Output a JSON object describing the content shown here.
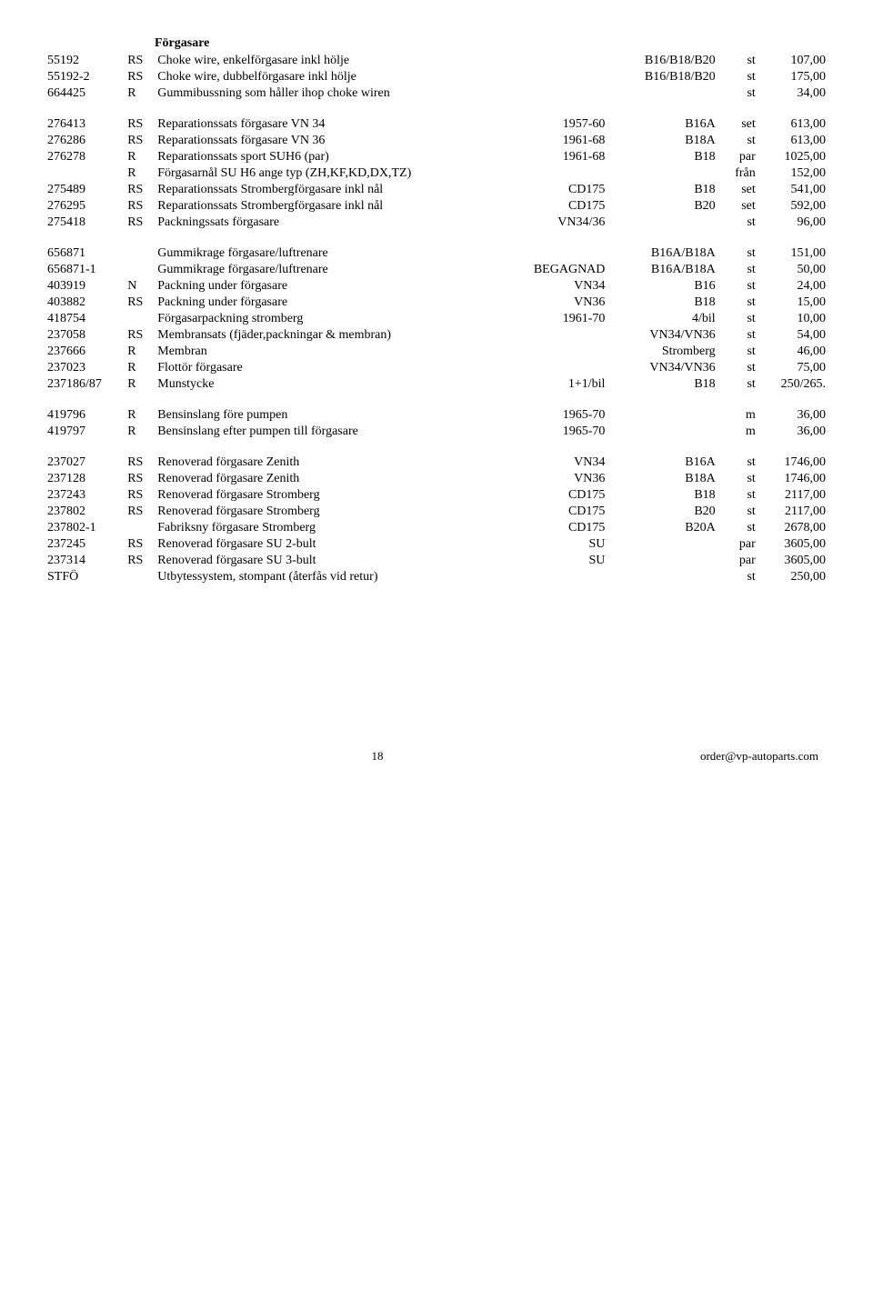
{
  "title": "Förgasare",
  "rows": [
    {
      "part": "55192",
      "code": "RS",
      "desc": "Choke wire, enkelförgasare   inkl hölje",
      "spec": "",
      "fit": "B16/B18/B20",
      "unit": "st",
      "price": "107,00"
    },
    {
      "part": "55192-2",
      "code": "RS",
      "desc": "Choke wire, dubbelförgasare   inkl hölje",
      "spec": "",
      "fit": "B16/B18/B20",
      "unit": "st",
      "price": "175,00"
    },
    {
      "part": "664425",
      "code": "R",
      "desc": "Gummibussning som håller ihop choke wiren",
      "spec": "",
      "fit": "",
      "unit": "st",
      "price": "34,00"
    },
    {
      "spacer": true
    },
    {
      "part": "276413",
      "code": "RS",
      "desc": "Reparationssats förgasare  VN 34",
      "spec": "1957-60",
      "fit": "B16A",
      "unit": "set",
      "price": "613,00"
    },
    {
      "part": "276286",
      "code": "RS",
      "desc": "Reparationssats förgasare  VN 36",
      "spec": "1961-68",
      "fit": "B18A",
      "unit": "st",
      "price": "613,00"
    },
    {
      "part": "276278",
      "code": "R",
      "desc": "Reparationssats sport SUH6 (par)",
      "spec": "1961-68",
      "fit": "B18",
      "unit": "par",
      "price": "1025,00"
    },
    {
      "part": "",
      "code": "R",
      "desc": "Förgasarnål SU H6   ange typ (ZH,KF,KD,DX,TZ)",
      "spec": "",
      "fit": "",
      "unit": "från",
      "price": "152,00"
    },
    {
      "part": "275489",
      "code": "RS",
      "desc": "Reparationssats Strombergförgasare inkl nål",
      "spec": "CD175",
      "fit": "B18",
      "unit": "set",
      "price": "541,00"
    },
    {
      "part": "276295",
      "code": "RS",
      "desc": "Reparationssats Strombergförgasare inkl nål",
      "spec": "CD175",
      "fit": "B20",
      "unit": "set",
      "price": "592,00"
    },
    {
      "part": "275418",
      "code": "RS",
      "desc": "Packningssats förgasare",
      "spec": "VN34/36",
      "fit": "",
      "unit": "st",
      "price": "96,00"
    },
    {
      "spacer": true
    },
    {
      "part": "656871",
      "code": "",
      "desc": "Gummikrage förgasare/luftrenare",
      "spec": "",
      "fit": "B16A/B18A",
      "unit": "st",
      "price": "151,00"
    },
    {
      "part": "656871-1",
      "code": "",
      "desc": "Gummikrage förgasare/luftrenare",
      "spec": "BEGAGNAD",
      "fit": "B16A/B18A",
      "unit": "st",
      "price": "50,00"
    },
    {
      "part": "403919",
      "code": "N",
      "desc": "Packning under förgasare",
      "spec": "VN34",
      "fit": "B16",
      "unit": "st",
      "price": "24,00"
    },
    {
      "part": "403882",
      "code": "RS",
      "desc": "Packning under förgasare",
      "spec": "VN36",
      "fit": "B18",
      "unit": "st",
      "price": "15,00"
    },
    {
      "part": "418754",
      "code": "",
      "desc": "Förgasarpackning stromberg",
      "spec": "1961-70",
      "fit": "4/bil",
      "unit": "st",
      "price": "10,00"
    },
    {
      "part": "237058",
      "code": "RS",
      "desc": "Membransats (fjäder,packningar & membran)",
      "spec": "",
      "fit": "VN34/VN36",
      "unit": "st",
      "price": "54,00"
    },
    {
      "part": "237666",
      "code": "R",
      "desc": "Membran",
      "spec": "",
      "fit": "Stromberg",
      "unit": "st",
      "price": "46,00"
    },
    {
      "part": "237023",
      "code": "R",
      "desc": "Flottör förgasare",
      "spec": "",
      "fit": "VN34/VN36",
      "unit": "st",
      "price": "75,00"
    },
    {
      "part": "237186/87",
      "code": "R",
      "desc": "Munstycke",
      "spec": "1+1/bil",
      "fit": "B18",
      "unit": "st",
      "price": "250/265."
    },
    {
      "spacer": true
    },
    {
      "part": "419796",
      "code": "R",
      "desc": "Bensinslang före pumpen",
      "spec": "1965-70",
      "fit": "",
      "unit": "m",
      "price": "36,00"
    },
    {
      "part": "419797",
      "code": "R",
      "desc": "Bensinslang efter pumpen till förgasare",
      "spec": "1965-70",
      "fit": "",
      "unit": "m",
      "price": "36,00"
    },
    {
      "spacer": true
    },
    {
      "part": "237027",
      "code": "RS",
      "desc": "Renoverad förgasare Zenith",
      "spec": "VN34",
      "fit": "B16A",
      "unit": "st",
      "price": "1746,00"
    },
    {
      "part": "237128",
      "code": "RS",
      "desc": "Renoverad förgasare Zenith",
      "spec": "VN36",
      "fit": "B18A",
      "unit": "st",
      "price": "1746,00"
    },
    {
      "part": "237243",
      "code": "RS",
      "desc": "Renoverad förgasare Stromberg",
      "spec": "CD175",
      "fit": "B18",
      "unit": "st",
      "price": "2117,00"
    },
    {
      "part": "237802",
      "code": "RS",
      "desc": "Renoverad förgasare Stromberg",
      "spec": "CD175",
      "fit": "B20",
      "unit": "st",
      "price": "2117,00"
    },
    {
      "part": "237802-1",
      "code": "",
      "desc": "Fabriksny förgasare Stromberg",
      "spec": "CD175",
      "fit": "B20A",
      "unit": "st",
      "price": "2678,00"
    },
    {
      "part": "237245",
      "code": "RS",
      "desc": "Renoverad förgasare SU 2-bult",
      "spec": "SU",
      "fit": "",
      "unit": "par",
      "price": "3605,00"
    },
    {
      "part": "237314",
      "code": "RS",
      "desc": "Renoverad förgasare SU 3-bult",
      "spec": "SU",
      "fit": "",
      "unit": "par",
      "price": "3605,00"
    },
    {
      "part": "STFÖ",
      "code": "",
      "desc": "Utbytessystem, stompant (återfås vid retur)",
      "spec": "",
      "fit": "",
      "unit": "st",
      "price": "250,00"
    }
  ],
  "footer": {
    "page": "18",
    "email": "order@vp-autoparts.com"
  }
}
